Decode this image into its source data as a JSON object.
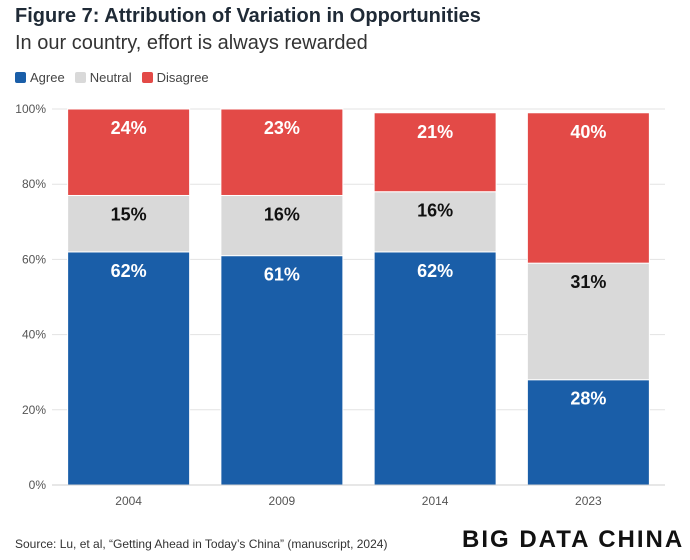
{
  "header": {
    "title": "Figure 7: Attribution of Variation in Opportunities",
    "subtitle": "In our country, effort is always rewarded"
  },
  "legend": [
    {
      "label": "Agree",
      "color": "#1a5ea8"
    },
    {
      "label": "Neutral",
      "color": "#d9d9d9"
    },
    {
      "label": "Disagree",
      "color": "#e34a47"
    }
  ],
  "footer": {
    "source": "Source: Lu, et al, “Getting Ahead in Today’s China” (manuscript, 2024)",
    "brand": "BIG DATA CHINA"
  },
  "chart_data": {
    "type": "bar",
    "stacked": true,
    "title": "Figure 7: Attribution of Variation in Opportunities",
    "subtitle": "In our country, effort is always rewarded",
    "categories": [
      "2004",
      "2009",
      "2014",
      "2023"
    ],
    "series": [
      {
        "name": "Agree",
        "values": [
          62,
          61,
          62,
          28
        ],
        "color": "#1a5ea8"
      },
      {
        "name": "Neutral",
        "values": [
          15,
          16,
          16,
          31
        ],
        "color": "#d9d9d9"
      },
      {
        "name": "Disagree",
        "values": [
          24,
          23,
          21,
          40
        ],
        "color": "#e34a47"
      }
    ],
    "ylim": [
      0,
      100
    ],
    "yticks": [
      "0%",
      "20%",
      "40%",
      "60%",
      "80%",
      "100%"
    ],
    "grid": true,
    "legend_position": "top-left"
  }
}
